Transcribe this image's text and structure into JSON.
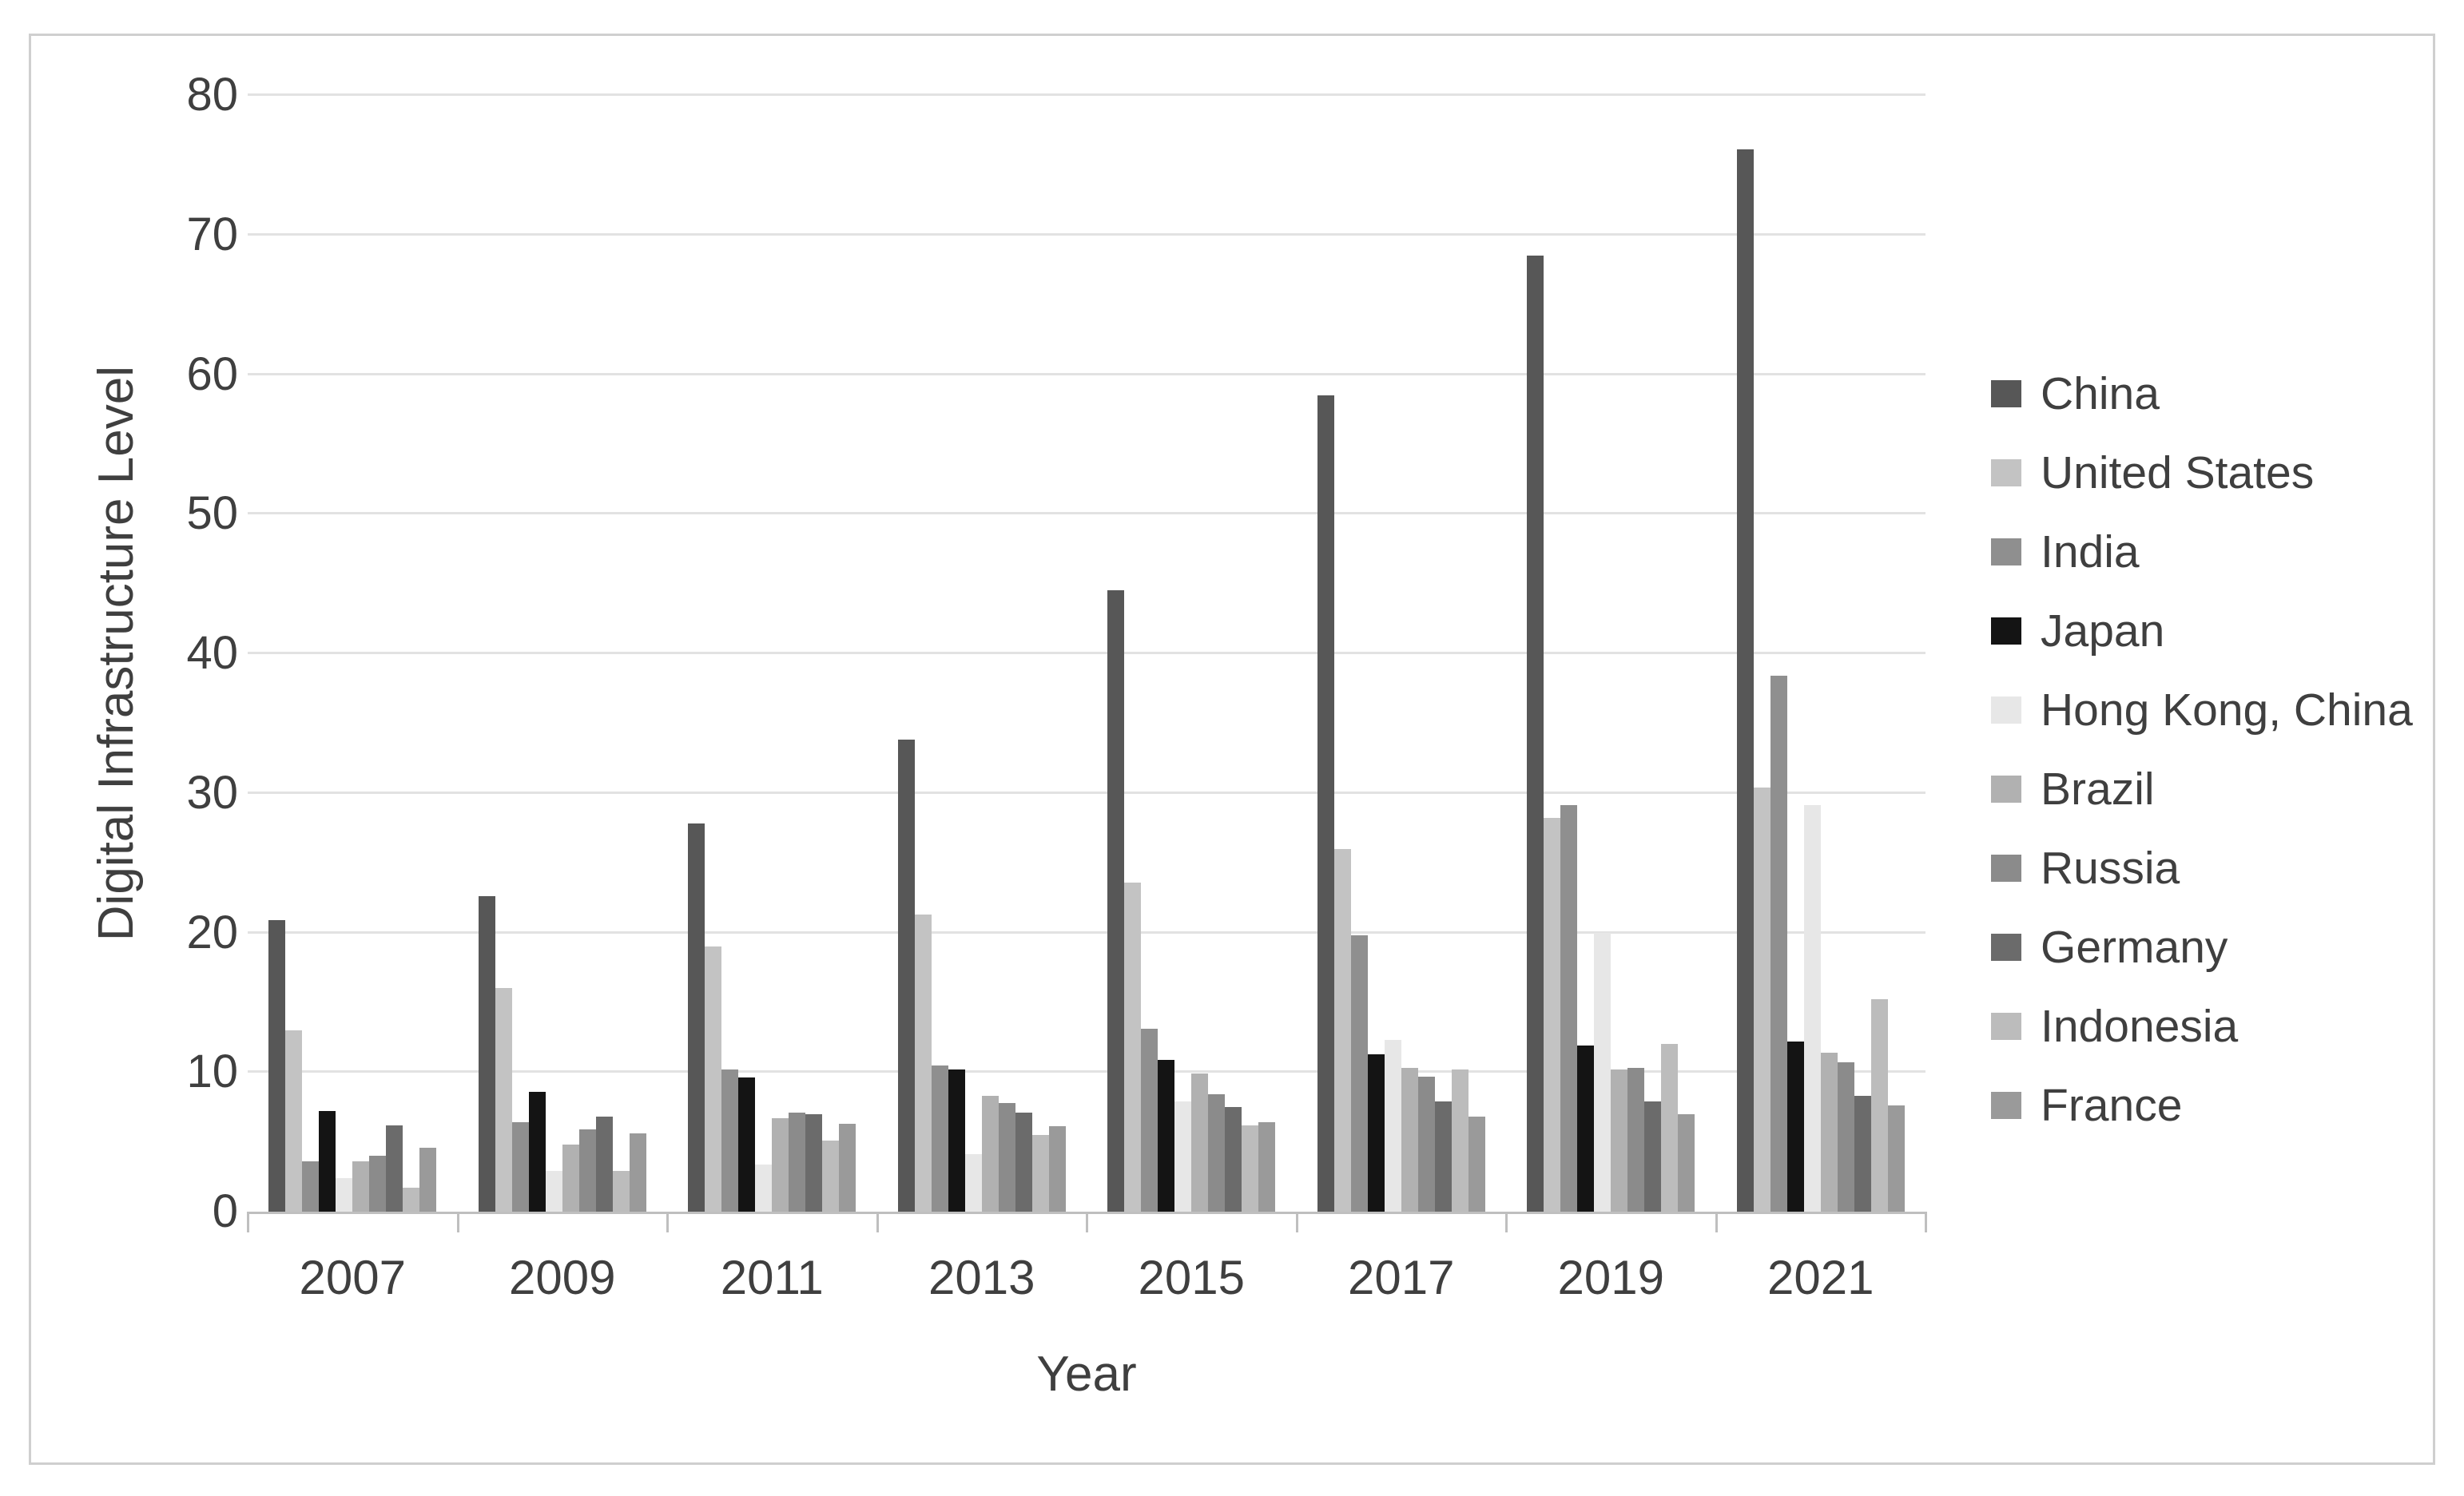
{
  "chart_data": {
    "type": "bar",
    "title": "",
    "xlabel": "Year",
    "ylabel": "Digital Infrastructure Level",
    "ylim": [
      0,
      80
    ],
    "ytick_step": 10,
    "yticks": [
      0,
      10,
      20,
      30,
      40,
      50,
      60,
      70,
      80
    ],
    "grid": "horizontal",
    "legend_position": "right",
    "categories": [
      "2007",
      "2009",
      "2011",
      "2013",
      "2015",
      "2017",
      "2019",
      "2021"
    ],
    "series": [
      {
        "name": "China",
        "color": "#575757",
        "values": [
          20.9,
          22.6,
          27.8,
          33.8,
          44.5,
          58.5,
          68.5,
          76.1
        ]
      },
      {
        "name": "United States",
        "color": "#c3c3c3",
        "values": [
          13.0,
          16.0,
          19.0,
          21.3,
          23.6,
          26.0,
          28.2,
          30.4
        ]
      },
      {
        "name": "India",
        "color": "#8f8f8f",
        "values": [
          3.6,
          6.4,
          10.2,
          10.5,
          13.1,
          19.8,
          29.1,
          38.4
        ]
      },
      {
        "name": "Japan",
        "color": "#141414",
        "values": [
          7.2,
          8.6,
          9.6,
          10.2,
          10.9,
          11.3,
          11.9,
          12.2
        ]
      },
      {
        "name": "Hong Kong, China",
        "color": "#e7e7e7",
        "values": [
          2.4,
          2.9,
          3.4,
          4.1,
          7.9,
          12.3,
          20.0,
          29.1
        ]
      },
      {
        "name": "Brazil",
        "color": "#b1b1b1",
        "values": [
          3.6,
          4.8,
          6.7,
          8.3,
          9.9,
          10.3,
          10.2,
          11.4
        ]
      },
      {
        "name": "Russia",
        "color": "#8b8b8b",
        "values": [
          4.0,
          5.9,
          7.1,
          7.8,
          8.4,
          9.7,
          10.3,
          10.7
        ]
      },
      {
        "name": "Germany",
        "color": "#6b6b6b",
        "values": [
          6.2,
          6.8,
          7.0,
          7.1,
          7.5,
          7.9,
          7.9,
          8.3
        ]
      },
      {
        "name": "Indonesia",
        "color": "#bcbcbc",
        "values": [
          1.7,
          2.9,
          5.1,
          5.5,
          6.2,
          10.2,
          12.0,
          15.2
        ]
      },
      {
        "name": "France",
        "color": "#9a9a9a",
        "values": [
          4.6,
          5.6,
          6.3,
          6.1,
          6.4,
          6.8,
          7.0,
          7.6
        ]
      }
    ]
  }
}
